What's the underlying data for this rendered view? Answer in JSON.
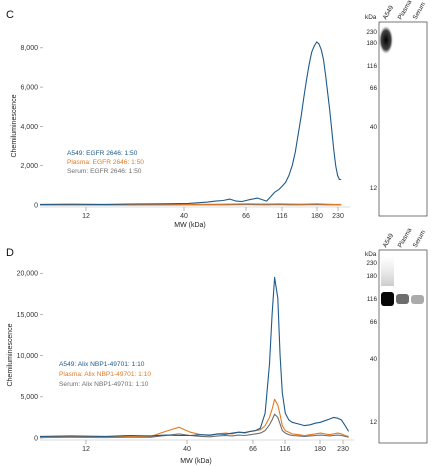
{
  "panels": [
    {
      "label": "C"
    },
    {
      "label": "D"
    }
  ],
  "colors": {
    "A549": "#1f5a8a",
    "Plasma": "#e07b24",
    "Serum": "#6e6e6e"
  },
  "chart_data": [
    {
      "type": "line",
      "panel": "C",
      "xlabel": "MW (kDa)",
      "ylabel": "Chemiluminescence",
      "x_ticks": [
        "12",
        "40",
        "66",
        "116",
        "180",
        "230"
      ],
      "y_ticks": [
        "0",
        "2,000",
        "4,000",
        "6,000",
        "8,000"
      ],
      "ylim": [
        0,
        8500
      ],
      "xscale": "log",
      "xlim": [
        7,
        260
      ],
      "series": [
        {
          "name": "A549: EGFR 2646: 1:50",
          "color": "#1f5a8a",
          "x": [
            7,
            10,
            15,
            20,
            30,
            40,
            50,
            55,
            60,
            65,
            70,
            75,
            80,
            90,
            100,
            110,
            116,
            120,
            125,
            130,
            135,
            140,
            145,
            150,
            155,
            160,
            165,
            170,
            175,
            180,
            185,
            190,
            195,
            200,
            205,
            210,
            215,
            220,
            225,
            230,
            235,
            240
          ],
          "y": [
            30,
            40,
            30,
            50,
            60,
            80,
            150,
            200,
            230,
            300,
            200,
            180,
            250,
            350,
            200,
            650,
            800,
            950,
            1150,
            1500,
            2000,
            2700,
            3600,
            4500,
            5500,
            6400,
            7200,
            7800,
            8100,
            8300,
            8200,
            7900,
            7400,
            6600,
            5700,
            4800,
            3800,
            2800,
            2000,
            1500,
            1300,
            1300
          ]
        },
        {
          "name": "Plasma: EGFR 2646: 1:50",
          "color": "#e07b24",
          "x": [
            7,
            20,
            40,
            60,
            80,
            100,
            116,
            130,
            150,
            180,
            200,
            220,
            240
          ],
          "y": [
            20,
            20,
            30,
            40,
            60,
            50,
            60,
            50,
            40,
            60,
            40,
            30,
            30
          ]
        },
        {
          "name": "Serum: EGFR 2646: 1:50",
          "color": "#6e6e6e",
          "x": [
            7,
            20,
            40,
            60,
            80,
            100,
            116,
            130,
            150,
            180,
            200,
            220,
            240
          ],
          "y": [
            0,
            0,
            10,
            10,
            20,
            10,
            20,
            10,
            10,
            20,
            10,
            10,
            10
          ]
        }
      ]
    },
    {
      "type": "line",
      "panel": "D",
      "xlabel": "MW (kDa)",
      "ylabel": "Chemiluminescence",
      "x_ticks": [
        "12",
        "40",
        "66",
        "116",
        "180",
        "230"
      ],
      "y_ticks": [
        "0",
        "5,000",
        "10,000",
        "15,000",
        "20,000"
      ],
      "ylim": [
        0,
        21000
      ],
      "xscale": "log",
      "xlim": [
        7,
        260
      ],
      "series": [
        {
          "name": "A549: Alix NBP1-49701: 1:10",
          "color": "#1f5a8a",
          "x": [
            7,
            10,
            15,
            20,
            25,
            30,
            35,
            40,
            45,
            50,
            55,
            60,
            65,
            70,
            75,
            80,
            85,
            90,
            95,
            100,
            103,
            106,
            110,
            113,
            116,
            120,
            125,
            130,
            140,
            150,
            160,
            170,
            180,
            190,
            200,
            210,
            220,
            230,
            240,
            250
          ],
          "y": [
            200,
            250,
            200,
            300,
            250,
            350,
            300,
            300,
            400,
            350,
            500,
            450,
            600,
            700,
            650,
            800,
            900,
            1200,
            3000,
            9000,
            15000,
            19500,
            17000,
            10000,
            5500,
            3000,
            2200,
            1900,
            1700,
            1500,
            1600,
            1800,
            1900,
            2100,
            2300,
            2500,
            2400,
            2200,
            1500,
            800
          ]
        },
        {
          "name": "Plasma: Alix NBP1-49701: 1:10",
          "color": "#e07b24",
          "x": [
            7,
            10,
            15,
            20,
            25,
            30,
            35,
            40,
            45,
            50,
            55,
            60,
            65,
            70,
            75,
            80,
            85,
            90,
            95,
            100,
            103,
            106,
            110,
            113,
            116,
            120,
            125,
            130,
            140,
            150,
            160,
            170,
            180,
            190,
            200,
            210,
            220,
            230,
            240,
            250
          ],
          "y": [
            100,
            150,
            100,
            200,
            150,
            800,
            1300,
            700,
            400,
            300,
            500,
            600,
            500,
            700,
            600,
            800,
            900,
            1000,
            1500,
            2500,
            3500,
            4700,
            4000,
            2800,
            1500,
            900,
            700,
            500,
            400,
            300,
            400,
            500,
            600,
            500,
            400,
            500,
            600,
            500,
            300,
            200
          ]
        },
        {
          "name": "Serum: Alix NBP1-49701: 1:10",
          "color": "#6e6e6e",
          "x": [
            7,
            10,
            15,
            20,
            25,
            30,
            35,
            40,
            45,
            50,
            55,
            60,
            65,
            70,
            75,
            80,
            85,
            90,
            95,
            100,
            103,
            106,
            110,
            113,
            116,
            120,
            125,
            130,
            140,
            150,
            160,
            170,
            180,
            190,
            200,
            210,
            220,
            230,
            240,
            250
          ],
          "y": [
            50,
            80,
            50,
            100,
            80,
            300,
            500,
            300,
            200,
            150,
            250,
            300,
            250,
            350,
            300,
            400,
            500,
            600,
            900,
            1600,
            2200,
            2900,
            2500,
            1700,
            900,
            600,
            400,
            300,
            250,
            200,
            250,
            300,
            350,
            300,
            250,
            300,
            350,
            300,
            200,
            100
          ]
        }
      ]
    }
  ],
  "blots": [
    {
      "panel": "C",
      "unit": "kDa",
      "lanes": [
        "A549",
        "Plasma",
        "Serum"
      ],
      "markers": [
        "230",
        "180",
        "116",
        "66",
        "40",
        "12"
      ]
    },
    {
      "panel": "D",
      "unit": "kDa",
      "lanes": [
        "A549",
        "Plasma",
        "Serum"
      ],
      "markers": [
        "230",
        "180",
        "116",
        "66",
        "40",
        "12"
      ]
    }
  ]
}
